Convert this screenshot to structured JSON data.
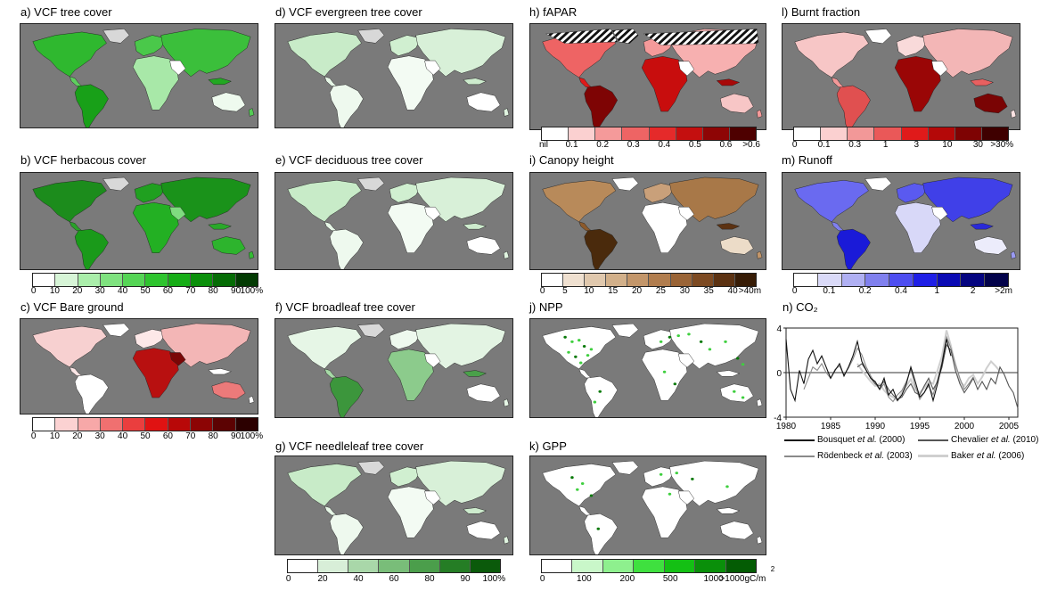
{
  "panels": {
    "a": {
      "title": "a) VCF tree cover"
    },
    "b": {
      "title": "b) VCF herbacous cover"
    },
    "c": {
      "title": "c) VCF Bare ground"
    },
    "d": {
      "title": "d) VCF evergreen tree cover"
    },
    "e": {
      "title": "e) VCF deciduous tree cover"
    },
    "f": {
      "title": "f) VCF broadleaf tree cover"
    },
    "g": {
      "title": "g) VCF needleleaf tree cover"
    },
    "h": {
      "title": "h) fAPAR"
    },
    "i": {
      "title": "i) Canopy height"
    },
    "j": {
      "title": "j) NPP"
    },
    "k": {
      "title": "k) GPP"
    },
    "l": {
      "title": "l) Burnt fraction"
    },
    "m": {
      "title": "m) Runoff"
    },
    "n": {
      "title": "n) CO₂"
    }
  },
  "colorbars": {
    "cover_green": {
      "colors": [
        "#ffffff",
        "#d7f5d7",
        "#aaeeaa",
        "#7fe27f",
        "#55d555",
        "#2ec42e",
        "#16ad16",
        "#0a8f0a",
        "#056c05",
        "#023a02"
      ],
      "labels": [
        "0",
        "10",
        "20",
        "30",
        "40",
        "50",
        "60",
        "70",
        "80",
        "90",
        "100%"
      ]
    },
    "bare_red": {
      "colors": [
        "#ffffff",
        "#fbd2d2",
        "#f7a8a8",
        "#f07070",
        "#ea3e3e",
        "#e01212",
        "#b80808",
        "#8c0404",
        "#5c0202",
        "#2c0000"
      ],
      "labels": [
        "0",
        "10",
        "20",
        "30",
        "40",
        "50",
        "60",
        "70",
        "80",
        "90",
        "100%"
      ]
    },
    "type_green": {
      "colors": [
        "#ffffff",
        "#d8eed8",
        "#a9d7a9",
        "#79bd79",
        "#4b9e4b",
        "#257d25",
        "#0b5a0b"
      ],
      "labels": [
        "0",
        "20",
        "40",
        "60",
        "80",
        "90",
        "100%"
      ]
    },
    "fapar": {
      "colors": [
        "#ffffff",
        "#fbd0d0",
        "#f59a9a",
        "#ee6464",
        "#e52a2a",
        "#c40f0f",
        "#8e0505",
        "#4e0000"
      ],
      "labels": [
        "nil",
        "0.1",
        "0.2",
        "0.3",
        "0.4",
        "0.5",
        "0.6",
        ">0.6"
      ]
    },
    "canopy": {
      "colors": [
        "#ffffff",
        "#efe0d0",
        "#e0c8ad",
        "#d2b08a",
        "#c3966a",
        "#b17d4e",
        "#9a6436",
        "#7d4a22",
        "#5c3212",
        "#371c06"
      ],
      "labels": [
        "0",
        "5",
        "10",
        "15",
        "20",
        "25",
        "30",
        "35",
        "40",
        ">40m"
      ]
    },
    "npp": {
      "colors": [
        "#ffffff",
        "#c9f7c9",
        "#8ef08e",
        "#3fe03f",
        "#14c014",
        "#0a8f0a",
        "#045c04"
      ],
      "labels": [
        "0",
        "100",
        "200",
        "500",
        "1000",
        ">1000gC/m"
      ],
      "superscript": "2"
    },
    "burnt": {
      "colors": [
        "#ffffff",
        "#fbd0d0",
        "#f29898",
        "#ea5858",
        "#e01a1a",
        "#b40808",
        "#7e0303",
        "#3f0000"
      ],
      "labels": [
        "0",
        "0.1",
        "0.3",
        "1",
        "3",
        "10",
        "30",
        ">30%"
      ]
    },
    "runoff": {
      "colors": [
        "#ffffff",
        "#dadaf8",
        "#b0b0f3",
        "#8080ee",
        "#4d4df0",
        "#1f1fe6",
        "#0a0ab4",
        "#050580",
        "#02024a"
      ],
      "labels": [
        "0",
        "0.1",
        "0.2",
        "0.4",
        "1",
        "2",
        ">2m"
      ]
    }
  },
  "chart_data": {
    "type": "line",
    "title": "n) CO₂",
    "xlim": [
      1980,
      2006
    ],
    "ylim": [
      -4,
      4
    ],
    "xticks": [
      1980,
      1985,
      1990,
      1995,
      2000,
      2005
    ],
    "yticks": [
      -4,
      0,
      4
    ],
    "zero_line": true,
    "series": [
      {
        "name": "Bousquet et al. (2000)",
        "color": "#111111",
        "x": [
          1980,
          1980.5,
          1981,
          1981.5,
          1982,
          1982.5,
          1983,
          1983.5,
          1984,
          1984.5,
          1985,
          1985.5,
          1986,
          1986.5,
          1987,
          1987.5,
          1988,
          1988.5,
          1989,
          1989.5,
          1990,
          1990.5,
          1991,
          1991.5,
          1992,
          1992.5,
          1993,
          1993.5,
          1994,
          1994.5,
          1995,
          1995.5,
          1996,
          1996.5,
          1997,
          1997.5,
          1998,
          1998.5
        ],
        "y": [
          3.0,
          -1.5,
          -2.5,
          0.2,
          -1.0,
          1.2,
          2.0,
          0.8,
          1.5,
          0.5,
          -0.5,
          0.2,
          0.8,
          -0.3,
          0.5,
          1.5,
          2.8,
          1.0,
          0.2,
          -0.5,
          -0.8,
          -1.5,
          -0.5,
          -2.0,
          -1.5,
          -2.5,
          -2.0,
          -1.0,
          0.5,
          -0.8,
          -2.2,
          -1.8,
          -1.0,
          -2.5,
          -1.0,
          0.8,
          3.0,
          1.5
        ]
      },
      {
        "name": "Chevalier et al. (2010)",
        "color": "#555555",
        "x": [
          1988,
          1988.5,
          1989,
          1989.5,
          1990,
          1990.5,
          1991,
          1991.5,
          1992,
          1992.5,
          1993,
          1993.5,
          1994,
          1994.5,
          1995,
          1995.5,
          1996,
          1996.5,
          1997,
          1997.5,
          1998,
          1998.5,
          1999,
          1999.5,
          2000,
          2000.5,
          2001,
          2001.5,
          2002,
          2002.5,
          2003,
          2003.5,
          2004,
          2004.5,
          2005,
          2005.5,
          2006
        ],
        "y": [
          0.5,
          0.8,
          0.2,
          -0.5,
          -1.0,
          -1.2,
          -0.8,
          -1.5,
          -2.0,
          -2.4,
          -2.2,
          -1.5,
          -1.0,
          -1.8,
          -2.0,
          -1.2,
          -0.5,
          -1.5,
          -0.8,
          0.5,
          2.5,
          2.0,
          0.2,
          -1.0,
          -1.8,
          -1.2,
          -0.5,
          -1.5,
          -0.8,
          -1.5,
          -0.5,
          -1.0,
          0.5,
          -0.2,
          -1.2,
          -1.8,
          -3.2
        ]
      },
      {
        "name": "Rödenbeck et al. (2003)",
        "color": "#8a8a8a",
        "x": [
          1982,
          1982.5,
          1983,
          1983.5,
          1984,
          1984.5,
          1985,
          1985.5,
          1986,
          1986.5,
          1987,
          1987.5,
          1988,
          1988.5,
          1989,
          1989.5,
          1990,
          1990.5,
          1991,
          1991.5,
          1992,
          1992.5,
          1993,
          1993.5,
          1994,
          1994.5,
          1995,
          1995.5,
          1996,
          1996.5,
          1997,
          1997.5,
          1998,
          1998.5,
          1999,
          1999.5,
          2000,
          2000.5,
          2001
        ],
        "y": [
          -1.5,
          -0.5,
          0.5,
          0.2,
          0.8,
          0.0,
          -0.5,
          0.3,
          0.6,
          -0.2,
          0.4,
          1.2,
          2.2,
          1.6,
          0.5,
          -0.3,
          -1.0,
          -1.5,
          -1.0,
          -2.2,
          -2.6,
          -2.0,
          -1.6,
          -0.8,
          0.3,
          -1.2,
          -2.4,
          -1.8,
          -1.2,
          -2.0,
          -0.6,
          1.0,
          3.2,
          2.2,
          0.8,
          -0.5,
          -1.5,
          -1.0,
          -0.4
        ]
      },
      {
        "name": "Baker et al. (2006)",
        "color": "#cfcfcf",
        "x": [
          1988,
          1988.5,
          1989,
          1989.5,
          1990,
          1990.5,
          1991,
          1991.5,
          1992,
          1992.5,
          1993,
          1993.5,
          1994,
          1994.5,
          1995,
          1995.5,
          1996,
          1996.5,
          1997,
          1997.5,
          1998,
          1998.5,
          1999,
          1999.5,
          2000,
          2000.5,
          2001,
          2001.5,
          2002,
          2002.5,
          2003,
          2003.5,
          2004
        ],
        "y": [
          0.8,
          0.2,
          -0.3,
          -0.8,
          -1.2,
          -1.0,
          -1.6,
          -2.0,
          -2.2,
          -2.5,
          -1.8,
          -1.2,
          -0.6,
          -1.5,
          -1.8,
          -1.4,
          -0.8,
          -1.0,
          0.2,
          1.5,
          3.8,
          2.4,
          0.6,
          -0.8,
          -1.2,
          -0.5,
          -0.2,
          -1.0,
          -0.4,
          0.4,
          1.0,
          0.6,
          0.1
        ]
      }
    ]
  },
  "legend": {
    "items": [
      {
        "name_before": "Bousquet ",
        "name_italic": "et al.",
        "name_after": " (2000)"
      },
      {
        "name_before": "Chevalier ",
        "name_italic": "et al.",
        "name_after": " (2010)"
      },
      {
        "name_before": "Rödenbeck ",
        "name_italic": "et al.",
        "name_after": " (2003)"
      },
      {
        "name_before": "Baker ",
        "name_italic": "et al.",
        "name_after": " (2006)"
      }
    ]
  }
}
